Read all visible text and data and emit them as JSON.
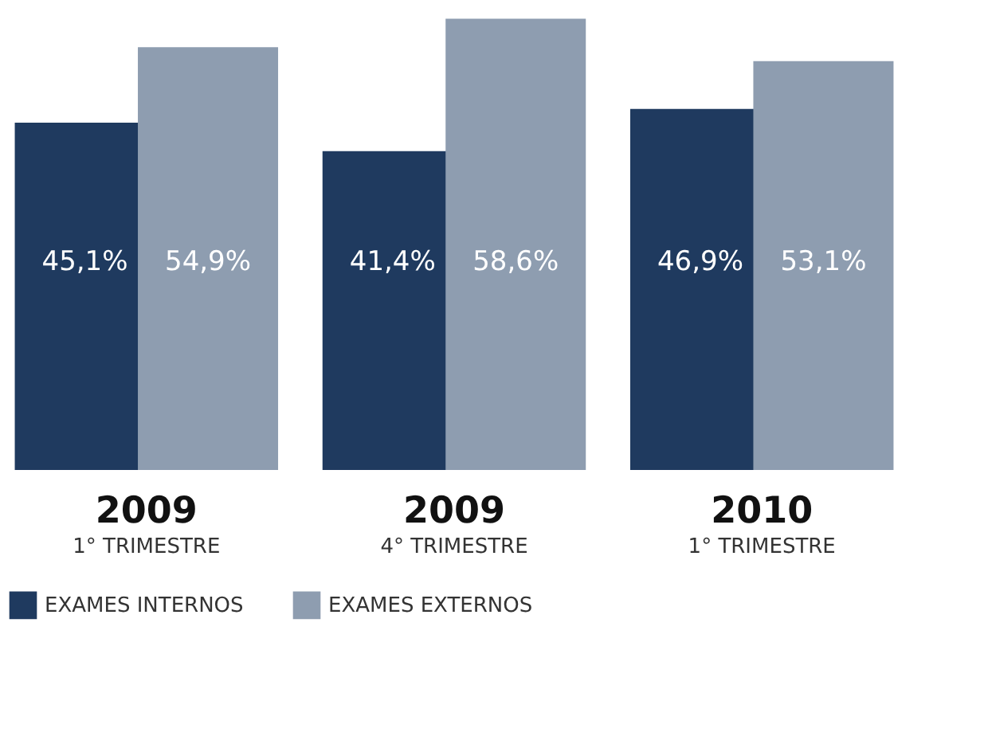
{
  "chart_data": {
    "type": "bar",
    "categories": [
      "2009\n1° TRIMESTRE",
      "2009\n4° TRIMESTRE",
      "2010\n1° TRIMESTRE"
    ],
    "series": [
      {
        "name": "EXAMES INTERNOS",
        "color": "#1f3a5f",
        "values": [
          45.1,
          41.4,
          46.9
        ],
        "value_labels": [
          "45,1%",
          "41,4%",
          "46,9%"
        ]
      },
      {
        "name": "EXAMES EXTERNOS",
        "color": "#8e9db0",
        "values": [
          54.9,
          58.6,
          53.1
        ],
        "value_labels": [
          "54,9%",
          "58,6%",
          "53,1%"
        ]
      }
    ],
    "legend": "bottom",
    "grid": false
  }
}
